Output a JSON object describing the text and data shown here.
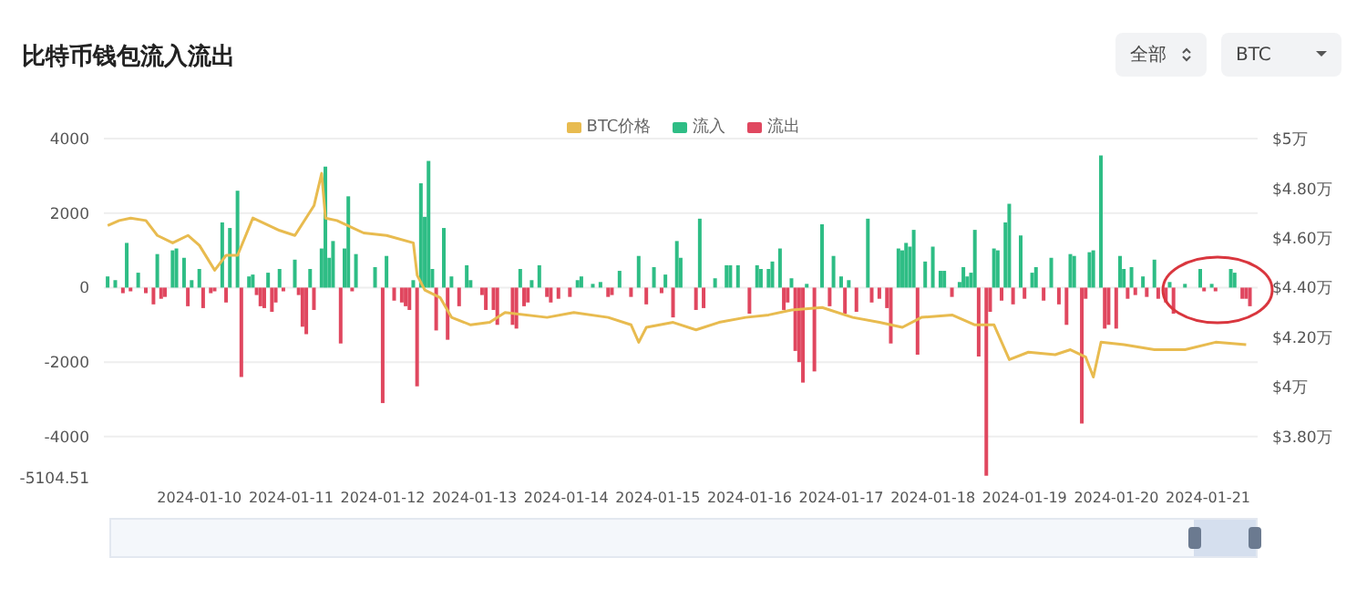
{
  "chart_data": {
    "type": "bar",
    "title": "比特币钱包流入流出",
    "annotations": [
      "全部",
      "BTC"
    ],
    "legend": "top",
    "grid": "y",
    "xlim": [
      "2024-01-08T23:00",
      "2024-01-21T13:00"
    ],
    "xticks": [
      "2024-01-10",
      "2024-01-11",
      "2024-01-12",
      "2024-01-13",
      "2024-01-14",
      "2024-01-15",
      "2024-01-16",
      "2024-01-17",
      "2024-01-18",
      "2024-01-19",
      "2024-01-20",
      "2024-01-21"
    ],
    "ylim": [
      -5104.51,
      4000
    ],
    "yticks": [
      -5104.51,
      -4000,
      -2000,
      0,
      2000,
      4000
    ],
    "y2lim": [
      3.6343,
      5
    ],
    "y2ticks": [
      {
        "value": 3.8,
        "label": "$3.80万"
      },
      {
        "value": 4,
        "label": "$4万"
      },
      {
        "value": 4.2,
        "label": "$4.20万"
      },
      {
        "value": 4.4,
        "label": "$4.40万"
      },
      {
        "value": 4.6,
        "label": "$4.60万"
      },
      {
        "value": 4.8,
        "label": "$4.80万"
      },
      {
        "value": 5,
        "label": "$5万"
      }
    ],
    "series": [
      {
        "name": "BTC价格",
        "type": "line",
        "axis": "y2",
        "color": "#e8bb4f",
        "x": [
          "2024-01-09T00:00",
          "2024-01-09T03:00",
          "2024-01-09T06:00",
          "2024-01-09T10:00",
          "2024-01-09T13:00",
          "2024-01-09T17:00",
          "2024-01-09T21:00",
          "2024-01-10T00:00",
          "2024-01-10T04:00",
          "2024-01-10T07:00",
          "2024-01-10T10:00",
          "2024-01-10T14:00",
          "2024-01-10T21:00",
          "2024-01-11T01:00",
          "2024-01-11T06:00",
          "2024-01-11T08:00",
          "2024-01-11T09:00",
          "2024-01-11T12:00",
          "2024-01-11T19:00",
          "2024-01-12T01:00",
          "2024-01-12T08:00",
          "2024-01-12T09:00",
          "2024-01-12T11:00",
          "2024-01-12T15:00",
          "2024-01-12T18:00",
          "2024-01-12T23:00",
          "2024-01-13T04:00",
          "2024-01-13T08:00",
          "2024-01-13T19:00",
          "2024-01-14T02:00",
          "2024-01-14T11:00",
          "2024-01-14T17:00",
          "2024-01-14T19:00",
          "2024-01-14T21:00",
          "2024-01-15T04:00",
          "2024-01-15T10:00",
          "2024-01-15T16:00",
          "2024-01-15T23:00",
          "2024-01-16T05:00",
          "2024-01-16T11:00",
          "2024-01-16T19:00",
          "2024-01-17T03:00",
          "2024-01-17T10:00",
          "2024-01-17T16:00",
          "2024-01-17T21:00",
          "2024-01-18T05:00",
          "2024-01-18T11:00",
          "2024-01-18T16:00",
          "2024-01-18T20:00",
          "2024-01-19T01:00",
          "2024-01-19T08:00",
          "2024-01-19T12:00",
          "2024-01-19T16:00",
          "2024-01-19T18:00",
          "2024-01-19T20:00",
          "2024-01-20T02:00",
          "2024-01-20T10:00",
          "2024-01-20T18:00",
          "2024-01-21T02:00",
          "2024-01-21T10:00"
        ],
        "values": [
          4.65,
          4.67,
          4.68,
          4.67,
          4.61,
          4.58,
          4.61,
          4.57,
          4.47,
          4.53,
          4.53,
          4.68,
          4.63,
          4.61,
          4.73,
          4.86,
          4.68,
          4.67,
          4.62,
          4.61,
          4.58,
          4.45,
          4.39,
          4.36,
          4.28,
          4.25,
          4.26,
          4.3,
          4.28,
          4.3,
          4.28,
          4.25,
          4.18,
          4.24,
          4.26,
          4.23,
          4.26,
          4.28,
          4.29,
          4.31,
          4.32,
          4.28,
          4.26,
          4.24,
          4.28,
          4.29,
          4.25,
          4.25,
          4.11,
          4.14,
          4.13,
          4.15,
          4.12,
          4.04,
          4.18,
          4.17,
          4.15,
          4.15,
          4.18,
          4.17
        ]
      },
      {
        "name": "流入",
        "color": "#2ebd85",
        "x": [
          "2024-01-09T00:00",
          "2024-01-09T02:00",
          "2024-01-09T05:00",
          "2024-01-09T08:00",
          "2024-01-09T13:00",
          "2024-01-09T17:00",
          "2024-01-09T18:00",
          "2024-01-09T20:00",
          "2024-01-09T22:00",
          "2024-01-10T00:00",
          "2024-01-10T06:00",
          "2024-01-10T08:00",
          "2024-01-10T10:00",
          "2024-01-10T13:00",
          "2024-01-10T14:00",
          "2024-01-10T18:00",
          "2024-01-10T21:00",
          "2024-01-11T01:00",
          "2024-01-11T05:00",
          "2024-01-11T08:00",
          "2024-01-11T09:00",
          "2024-01-11T10:00",
          "2024-01-11T11:00",
          "2024-01-11T14:00",
          "2024-01-11T15:00",
          "2024-01-11T17:00",
          "2024-01-11T22:00",
          "2024-01-12T01:00",
          "2024-01-12T08:00",
          "2024-01-12T10:00",
          "2024-01-12T11:00",
          "2024-01-12T12:00",
          "2024-01-12T13:00",
          "2024-01-12T16:00",
          "2024-01-12T18:00",
          "2024-01-12T22:00",
          "2024-01-12T23:00",
          "2024-01-13T12:00",
          "2024-01-13T15:00",
          "2024-01-13T17:00",
          "2024-01-14T03:00",
          "2024-01-14T04:00",
          "2024-01-14T07:00",
          "2024-01-14T09:00",
          "2024-01-14T14:00",
          "2024-01-14T19:00",
          "2024-01-14T23:00",
          "2024-01-15T02:00",
          "2024-01-15T05:00",
          "2024-01-15T06:00",
          "2024-01-15T11:00",
          "2024-01-15T15:00",
          "2024-01-15T18:00",
          "2024-01-15T19:00",
          "2024-01-15T21:00",
          "2024-01-16T02:00",
          "2024-01-16T03:00",
          "2024-01-16T05:00",
          "2024-01-16T06:00",
          "2024-01-16T08:00",
          "2024-01-16T11:00",
          "2024-01-16T15:00",
          "2024-01-16T19:00",
          "2024-01-16T22:00",
          "2024-01-17T00:00",
          "2024-01-17T02:00",
          "2024-01-17T07:00",
          "2024-01-17T15:00",
          "2024-01-17T16:00",
          "2024-01-17T17:00",
          "2024-01-17T18:00",
          "2024-01-17T19:00",
          "2024-01-17T22:00",
          "2024-01-18T00:00",
          "2024-01-18T02:00",
          "2024-01-18T03:00",
          "2024-01-18T07:00",
          "2024-01-18T08:00",
          "2024-01-18T09:00",
          "2024-01-18T10:00",
          "2024-01-18T11:00",
          "2024-01-18T16:00",
          "2024-01-18T17:00",
          "2024-01-18T19:00",
          "2024-01-18T20:00",
          "2024-01-18T23:00",
          "2024-01-19T02:00",
          "2024-01-19T03:00",
          "2024-01-19T07:00",
          "2024-01-19T12:00",
          "2024-01-19T13:00",
          "2024-01-19T17:00",
          "2024-01-19T18:00",
          "2024-01-19T20:00",
          "2024-01-20T01:00",
          "2024-01-20T02:00",
          "2024-01-20T04:00",
          "2024-01-20T07:00",
          "2024-01-20T10:00",
          "2024-01-20T14:00",
          "2024-01-20T18:00",
          "2024-01-20T22:00",
          "2024-01-21T01:00",
          "2024-01-21T06:00",
          "2024-01-21T07:00"
        ],
        "values": [
          300,
          200,
          1200,
          400,
          900,
          1000,
          1050,
          800,
          200,
          500,
          1750,
          1600,
          2600,
          300,
          350,
          400,
          500,
          750,
          500,
          1050,
          3250,
          800,
          1250,
          1050,
          2450,
          900,
          550,
          850,
          200,
          2800,
          1900,
          3400,
          500,
          1600,
          300,
          600,
          200,
          500,
          200,
          600,
          200,
          300,
          100,
          150,
          450,
          850,
          550,
          350,
          1250,
          800,
          1850,
          250,
          600,
          600,
          600,
          600,
          500,
          500,
          700,
          1050,
          250,
          100,
          1700,
          850,
          300,
          200,
          1850,
          1050,
          1000,
          1200,
          1100,
          1550,
          700,
          1100,
          450,
          450,
          150,
          550,
          300,
          400,
          1550,
          1050,
          1000,
          1750,
          2250,
          1400,
          400,
          550,
          800,
          900,
          850,
          950,
          1000,
          3550,
          850,
          500,
          550,
          300,
          750,
          150,
          100,
          500,
          100,
          500,
          400
        ]
      },
      {
        "name": "流出",
        "color": "#e0475f",
        "x": [
          "2024-01-09T04:00",
          "2024-01-09T06:00",
          "2024-01-09T10:00",
          "2024-01-09T12:00",
          "2024-01-09T14:00",
          "2024-01-09T15:00",
          "2024-01-09T21:00",
          "2024-01-10T01:00",
          "2024-01-10T03:00",
          "2024-01-10T04:00",
          "2024-01-10T07:00",
          "2024-01-10T11:00",
          "2024-01-10T15:00",
          "2024-01-10T16:00",
          "2024-01-10T17:00",
          "2024-01-10T19:00",
          "2024-01-10T20:00",
          "2024-01-10T22:00",
          "2024-01-11T02:00",
          "2024-01-11T03:00",
          "2024-01-11T04:00",
          "2024-01-11T06:00",
          "2024-01-11T13:00",
          "2024-01-11T16:00",
          "2024-01-12T00:00",
          "2024-01-12T03:00",
          "2024-01-12T05:00",
          "2024-01-12T06:00",
          "2024-01-12T07:00",
          "2024-01-12T09:00",
          "2024-01-12T14:00",
          "2024-01-12T17:00",
          "2024-01-12T20:00",
          "2024-01-13T02:00",
          "2024-01-13T03:00",
          "2024-01-13T05:00",
          "2024-01-13T06:00",
          "2024-01-13T10:00",
          "2024-01-13T11:00",
          "2024-01-13T13:00",
          "2024-01-13T14:00",
          "2024-01-13T19:00",
          "2024-01-13T20:00",
          "2024-01-13T22:00",
          "2024-01-14T01:00",
          "2024-01-14T11:00",
          "2024-01-14T12:00",
          "2024-01-14T17:00",
          "2024-01-14T21:00",
          "2024-01-15T01:00",
          "2024-01-15T04:00",
          "2024-01-15T10:00",
          "2024-01-15T12:00",
          "2024-01-16T00:00",
          "2024-01-16T09:00",
          "2024-01-16T10:00",
          "2024-01-16T12:00",
          "2024-01-16T13:00",
          "2024-01-16T14:00",
          "2024-01-16T17:00",
          "2024-01-16T21:00",
          "2024-01-17T01:00",
          "2024-01-17T04:00",
          "2024-01-17T08:00",
          "2024-01-17T10:00",
          "2024-01-17T12:00",
          "2024-01-17T13:00",
          "2024-01-17T20:00",
          "2024-01-18T05:00",
          "2024-01-18T12:00",
          "2024-01-18T14:00",
          "2024-01-18T15:00",
          "2024-01-18T18:00",
          "2024-01-18T21:00",
          "2024-01-19T00:00",
          "2024-01-19T05:00",
          "2024-01-19T09:00",
          "2024-01-19T11:00",
          "2024-01-19T15:00",
          "2024-01-19T16:00",
          "2024-01-19T21:00",
          "2024-01-19T22:00",
          "2024-01-20T00:00",
          "2024-01-20T03:00",
          "2024-01-20T05:00",
          "2024-01-20T08:00",
          "2024-01-20T11:00",
          "2024-01-20T13:00",
          "2024-01-20T15:00",
          "2024-01-20T23:00",
          "2024-01-21T02:00",
          "2024-01-21T09:00",
          "2024-01-21T10:00",
          "2024-01-21T11:00"
        ],
        "values": [
          -150,
          -100,
          -150,
          -450,
          -300,
          -250,
          -500,
          -550,
          -150,
          -100,
          -400,
          -2400,
          -200,
          -500,
          -550,
          -650,
          -400,
          -100,
          -200,
          -1050,
          -1250,
          -600,
          -1500,
          -100,
          -3100,
          -350,
          -400,
          -500,
          -600,
          -2650,
          -1150,
          -1400,
          -500,
          -200,
          -600,
          -600,
          -1000,
          -1000,
          -1100,
          -500,
          -400,
          -250,
          -400,
          -300,
          -250,
          -250,
          -200,
          -250,
          -450,
          -150,
          -800,
          -600,
          -550,
          -700,
          -600,
          -400,
          -1700,
          -2000,
          -2550,
          -2250,
          -500,
          -700,
          -650,
          -400,
          -300,
          -550,
          -1500,
          -1800,
          -250,
          -1850,
          -5050,
          -650,
          -350,
          -450,
          -300,
          -350,
          -450,
          -1000,
          -3650,
          -300,
          -1100,
          -1000,
          -1100,
          -300,
          -200,
          -250,
          -300,
          -400,
          -700,
          -100,
          -100,
          -300,
          -300,
          -500
        ]
      }
    ]
  }
}
